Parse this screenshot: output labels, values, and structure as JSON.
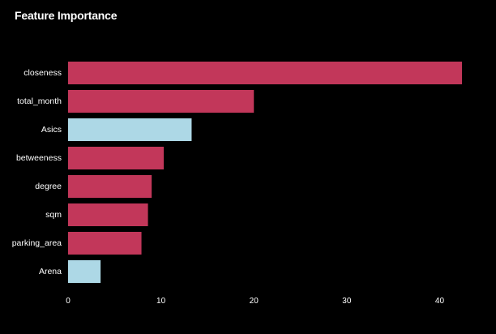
{
  "chart_data": {
    "type": "bar",
    "orientation": "horizontal",
    "title": "Feature Importance",
    "xlabel": "",
    "ylabel": "",
    "categories": [
      "closeness",
      "total_month",
      "Asics",
      "betweeness",
      "degree",
      "sqm",
      "parking_area",
      "Arena"
    ],
    "values": [
      42.4,
      20.0,
      13.3,
      10.3,
      9.0,
      8.6,
      7.9,
      3.5
    ],
    "highlight": [
      false,
      false,
      true,
      false,
      false,
      false,
      false,
      true
    ],
    "xlim": [
      0,
      42.4
    ],
    "xticks": [
      0,
      10,
      20,
      30,
      40
    ],
    "grid": false,
    "colors": {
      "default_bar": "#C2375A",
      "highlight_bar": "#ADD8E6",
      "background": "#000000",
      "text": "#FFFFFF"
    }
  }
}
